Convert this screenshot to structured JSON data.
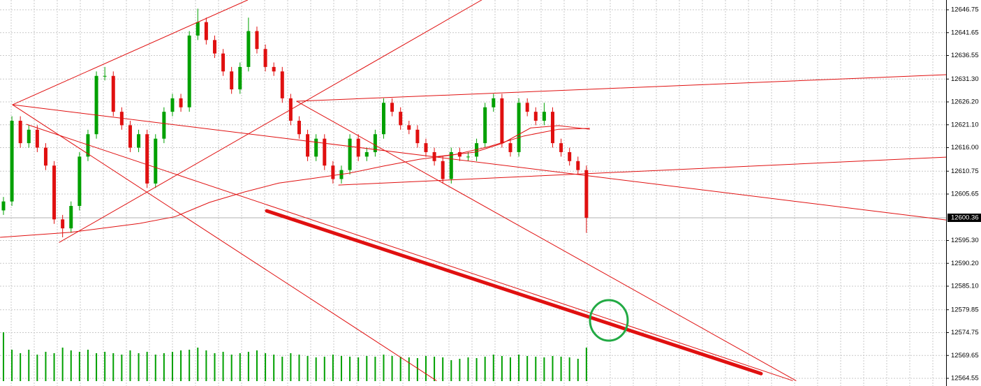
{
  "chart_data": {
    "type": "candlestick",
    "up_color": "#00a000",
    "down_color": "#e01010",
    "line_color": "#e01010",
    "grid": true,
    "xlim": [
      -0.41,
      111.57
    ],
    "ylim": [
      12562.84,
      12648.93
    ],
    "yticks": [
      12646.75,
      12641.65,
      12636.55,
      {
        "value": 12631.3,
        "label": "12631.30"
      },
      {
        "value": 12626.2,
        "label": "12626.20"
      },
      {
        "value": 12621.1,
        "label": "12621.10"
      },
      {
        "value": 12616,
        "label": "12616.00"
      },
      12610.75,
      12605.65,
      {
        "value": 12595.3,
        "label": "12595.30"
      },
      {
        "value": 12590.2,
        "label": "12590.20"
      },
      {
        "value": 12585.1,
        "label": "12585.10"
      },
      12579.85,
      12574.75,
      12569.65,
      12564.55
    ],
    "last_price": 12600.36,
    "open": [
      12602,
      12604,
      12622,
      12617,
      12620,
      12616,
      12612,
      12600,
      12598,
      12603,
      12614,
      12619,
      12632,
      12632,
      12624,
      12621,
      12616,
      12619,
      12608,
      12618,
      12624,
      12627,
      12625,
      12641,
      12644,
      12640,
      12637,
      12633,
      12629,
      12634,
      12642,
      12638,
      12634,
      12633,
      12627,
      12622,
      12619,
      12614,
      12618,
      12612,
      12609,
      12611,
      12618,
      12614,
      12615,
      12619,
      12626,
      12624,
      12621,
      12620,
      12617,
      12615,
      12613,
      12609,
      12615,
      12614,
      12614,
      12617,
      12625,
      12627,
      12617,
      12615,
      12626,
      12624,
      12622,
      12624,
      12617,
      12615,
      12613,
      12611
    ],
    "high": [
      12605,
      12623,
      12623,
      12621,
      12621,
      12617,
      12613,
      12601,
      12604,
      12615,
      12620,
      12633,
      12634,
      12633,
      12625,
      12622,
      12620,
      12620,
      12619,
      12625,
      12628,
      12628,
      12642,
      12647,
      12645,
      12641,
      12638,
      12634,
      12635,
      12645,
      12643,
      12639,
      12635,
      12634,
      12628,
      12623,
      12620,
      12619,
      12619,
      12613,
      12612,
      12619,
      12619,
      12616,
      12620,
      12627,
      12627,
      12625,
      12622,
      12621,
      12618,
      12616,
      12614,
      12616,
      12616,
      12615,
      12618,
      12626,
      12628,
      12628,
      12618,
      12627,
      12627,
      12625,
      12626,
      12625,
      12618,
      12616,
      12614,
      12612
    ],
    "low": [
      12601,
      12603,
      12616,
      12616,
      12615,
      12611,
      12599,
      12596,
      12597,
      12602,
      12613,
      12618,
      12631,
      12623,
      12620,
      12615,
      12615,
      12607,
      12607,
      12617,
      12623,
      12624,
      12624,
      12640,
      12639,
      12636,
      12632,
      12628,
      12628,
      12633,
      12637,
      12633,
      12632,
      12626,
      12621,
      12618,
      12613,
      12613,
      12611,
      12608,
      12608,
      12610,
      12613,
      12613,
      12614,
      12618,
      12623,
      12620,
      12619,
      12616,
      12614,
      12612,
      12608,
      12608,
      12613,
      12613,
      12613,
      12616,
      12624,
      12616,
      12614,
      12614,
      12623,
      12621,
      12621,
      12616,
      12614,
      12612,
      12610,
      12597
    ],
    "close": [
      12604,
      12622,
      12617,
      12620,
      12616,
      12612,
      12600,
      12598,
      12603,
      12614,
      12619,
      12632,
      12632,
      12624,
      12621,
      12616,
      12619,
      12608,
      12618,
      12624,
      12627,
      12625,
      12641,
      12644,
      12640,
      12637,
      12633,
      12629,
      12634,
      12642,
      12638,
      12634,
      12633,
      12627,
      12622,
      12619,
      12614,
      12618,
      12612,
      12609,
      12611,
      12618,
      12614,
      12615,
      12619,
      12626,
      12624,
      12621,
      12620,
      12617,
      12615,
      12613,
      12609,
      12615,
      12614,
      12614,
      12617,
      12625,
      12627,
      12617,
      12615,
      12626,
      12624,
      12622,
      12624,
      12617,
      12615,
      12613,
      12611,
      12600.36
    ],
    "volume_color": "#00a000",
    "volume_lim": [
      0,
      100
    ],
    "volume": [
      70,
      45,
      40,
      45,
      38,
      42,
      40,
      48,
      44,
      42,
      45,
      40,
      42,
      40,
      38,
      44,
      40,
      42,
      38,
      40,
      42,
      44,
      45,
      48,
      44,
      40,
      42,
      38,
      40,
      42,
      44,
      40,
      38,
      35,
      40,
      38,
      36,
      34,
      35,
      38,
      36,
      35,
      34,
      36,
      35,
      38,
      36,
      35,
      34,
      33,
      36,
      35,
      34,
      30,
      32,
      34,
      33,
      35,
      38,
      36,
      34,
      38,
      36,
      35,
      34,
      36,
      35,
      34,
      32,
      48
    ],
    "moving_averages": [
      {
        "x": [
          -0.4,
          7.9,
          16.1,
          20.3,
          24.4,
          28.5,
          32.6,
          36.8,
          40.9,
          45.0,
          49.2,
          53.3,
          57.4,
          61.6,
          65.7,
          69.4
        ],
        "values": [
          12596.0,
          12597.1,
          12599.1,
          12600.6,
          12603.8,
          12606.1,
          12608.1,
          12609.2,
          12610.3,
          12611.9,
          12613.4,
          12614.4,
          12616.2,
          12618.6,
          12620.1,
          12620.3
        ]
      },
      {
        "x": [
          50.8,
          55.8,
          59.1,
          62.4,
          65.7,
          69.4
        ],
        "values": [
          12613.9,
          12615.0,
          12617.0,
          12620.4,
          12620.9,
          12620.1
        ]
      }
    ],
    "trendlines": [
      {
        "x": [
          1.07,
          28.9
        ],
        "y": [
          12625.57,
          12648.93
        ],
        "width": 1
      },
      {
        "x": [
          1.07,
          111.57
        ],
        "y": [
          12625.57,
          12599.87
        ],
        "width": 1
      },
      {
        "x": [
          1.07,
          51.24
        ],
        "y": [
          12625.57,
          12564.04
        ],
        "width": 1
      },
      {
        "x": [
          2.73,
          93.4
        ],
        "y": [
          12621.2,
          12564.04
        ],
        "width": 1
      },
      {
        "x": [
          6.61,
          56.6
        ],
        "y": [
          12594.88,
          12648.93
        ],
        "width": 1
      },
      {
        "x": [
          34.71,
          111.57
        ],
        "y": [
          12626.35,
          12632.27
        ],
        "width": 1
      },
      {
        "x": [
          34.71,
          93.8
        ],
        "y": [
          12626.35,
          12564.04
        ],
        "width": 1
      },
      {
        "x": [
          39.67,
          111.57
        ],
        "y": [
          12607.65,
          12613.88
        ],
        "width": 1
      },
      {
        "x": [
          31.16,
          89.67
        ],
        "y": [
          12601.89,
          12565.6
        ],
        "width": 5
      }
    ]
  }
}
